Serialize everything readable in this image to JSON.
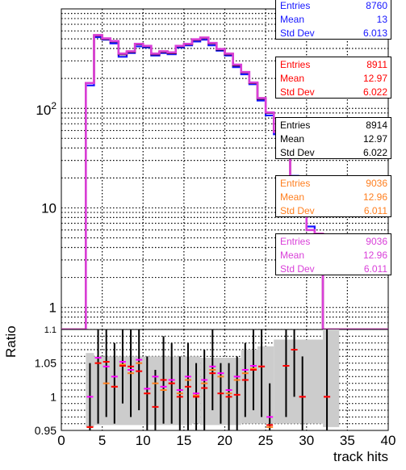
{
  "chart_data": [
    {
      "type": "line",
      "panel": "upper",
      "xlim": [
        0,
        40
      ],
      "y_scale": "log",
      "ylim": [
        0.6,
        1000
      ],
      "y_tick_labels": [
        "1",
        "10",
        "10^2"
      ],
      "grid": true,
      "bin_edges": [
        0,
        1,
        2,
        3,
        4,
        5,
        6,
        7,
        8,
        9,
        10,
        11,
        12,
        13,
        14,
        15,
        16,
        17,
        18,
        19,
        20,
        21,
        22,
        23,
        24,
        25,
        26,
        27,
        28,
        29,
        30,
        31,
        32,
        33,
        34,
        35,
        36,
        37,
        38,
        39,
        40
      ],
      "series": [
        {
          "color": "#1515ff",
          "values": [
            0,
            0,
            0,
            170,
            520,
            490,
            450,
            330,
            360,
            420,
            410,
            340,
            360,
            350,
            410,
            430,
            470,
            490,
            430,
            380,
            340,
            260,
            220,
            175,
            120,
            85,
            55,
            32,
            21,
            12,
            6.5,
            3.2,
            0,
            0,
            0,
            0,
            0,
            0,
            0,
            0
          ],
          "stats": {
            "entries_label": "Entries",
            "entries": "8760",
            "mean_label": "Mean",
            "mean": "13",
            "std_label": "Std Dev",
            "std": "6.013"
          }
        },
        {
          "color": "#ff0000",
          "values": [
            0,
            0,
            0,
            180,
            540,
            500,
            470,
            350,
            370,
            440,
            420,
            350,
            370,
            360,
            420,
            440,
            490,
            510,
            450,
            390,
            350,
            270,
            230,
            180,
            125,
            90,
            58,
            34,
            17,
            11,
            6,
            5.5,
            0,
            0,
            0,
            0,
            0,
            0,
            0,
            0
          ],
          "stats": {
            "entries_label": "Entries",
            "entries": "8911",
            "mean_label": "Mean",
            "mean": "12.97",
            "std_label": "Std Dev",
            "std": "6.022"
          }
        },
        {
          "color": "#000000",
          "values": [
            0,
            0,
            0,
            180,
            540,
            500,
            470,
            350,
            370,
            440,
            420,
            350,
            370,
            360,
            420,
            440,
            490,
            510,
            450,
            390,
            350,
            270,
            230,
            180,
            125,
            90,
            58,
            34,
            17,
            11,
            6,
            5.5,
            0,
            0,
            0,
            0,
            0,
            0,
            0,
            0
          ],
          "stats": {
            "entries_label": "Entries",
            "entries": "8914",
            "mean_label": "Mean",
            "mean": "12.97",
            "std_label": "Std Dev",
            "std": "6.022"
          }
        },
        {
          "color": "#ff7f1f",
          "values": [
            0,
            0,
            0,
            180,
            545,
            505,
            475,
            355,
            375,
            445,
            425,
            355,
            375,
            365,
            425,
            445,
            495,
            515,
            455,
            395,
            355,
            275,
            232,
            182,
            127,
            91,
            58,
            34,
            17,
            11,
            6,
            5.5,
            0,
            0,
            0,
            0,
            0,
            0,
            0,
            0
          ],
          "stats": {
            "entries_label": "Entries",
            "entries": "9036",
            "mean_label": "Mean",
            "mean": "12.96",
            "std_label": "Std Dev",
            "std": "6.011"
          }
        },
        {
          "color": "#d93fd9",
          "values": [
            0,
            0,
            0,
            180,
            545,
            505,
            475,
            355,
            375,
            445,
            425,
            355,
            375,
            365,
            425,
            445,
            495,
            515,
            455,
            395,
            355,
            275,
            232,
            182,
            127,
            91,
            58,
            34,
            17,
            11,
            6,
            5.5,
            0,
            0,
            0,
            0,
            0,
            0,
            0,
            0
          ],
          "stats": {
            "entries_label": "Entries",
            "entries": "9036",
            "mean_label": "Mean",
            "mean": "12.96",
            "std_label": "Std Dev",
            "std": "6.011"
          }
        }
      ]
    },
    {
      "type": "scatter",
      "panel": "lower",
      "xlabel": "track hits",
      "ylabel": "Ratio",
      "xlim": [
        0,
        40
      ],
      "ylim": [
        0.95,
        1.1
      ],
      "x_tick_labels": [
        "0",
        "5",
        "10",
        "15",
        "20",
        "25",
        "30",
        "35",
        "40"
      ],
      "y_tick_labels": [
        "0.95",
        "1",
        "1.05"
      ],
      "y_top_label": "1.1",
      "grid": true,
      "band": [
        {
          "x": [
            3,
            4
          ],
          "lo": 0.955,
          "hi": 1.065
        },
        {
          "x": [
            4,
            16
          ],
          "lo": 0.958,
          "hi": 1.06
        },
        {
          "x": [
            16,
            17
          ],
          "lo": 0.96,
          "hi": 1.06
        },
        {
          "x": [
            17,
            22
          ],
          "lo": 0.958,
          "hi": 1.058
        },
        {
          "x": [
            22,
            24
          ],
          "lo": 0.96,
          "hi": 1.07
        },
        {
          "x": [
            24,
            26
          ],
          "lo": 0.96,
          "hi": 1.075
        },
        {
          "x": [
            26,
            32
          ],
          "lo": 0.96,
          "hi": 1.085
        },
        {
          "x": [
            32,
            34
          ],
          "lo": 0.955,
          "hi": 1.1
        }
      ],
      "series": [
        {
          "color": "#ff00ff",
          "points": [
            [
              3.5,
              1.0
            ],
            [
              4.5,
              1.058
            ],
            [
              5.5,
              1.045
            ],
            [
              6.5,
              1.03
            ],
            [
              7.5,
              1.052
            ],
            [
              8.5,
              1.04
            ],
            [
              9.5,
              1.055
            ],
            [
              10.5,
              1.012
            ],
            [
              11.5,
              1.03
            ],
            [
              12.5,
              1.015
            ],
            [
              13.5,
              1.025
            ],
            [
              14.5,
              1.01
            ],
            [
              15.5,
              1.03
            ],
            [
              16.5,
              1.005
            ],
            [
              17.5,
              1.025
            ],
            [
              18.5,
              1.045
            ],
            [
              19.5,
              1.035
            ],
            [
              20.5,
              1.01
            ],
            [
              21.5,
              1.03
            ],
            [
              22.5,
              1.04
            ],
            [
              23.5,
              1.046
            ],
            [
              24.5,
              1.045
            ],
            [
              25.5,
              0.97
            ],
            [
              27.5,
              1.046
            ],
            [
              28.5,
              1.07
            ],
            [
              29.5,
              1.0
            ],
            [
              32.5,
              1.0
            ]
          ]
        },
        {
          "color": "#ff7f1f",
          "points": [
            [
              3.5,
              0.955
            ],
            [
              4.5,
              1.05
            ],
            [
              5.5,
              1.02
            ],
            [
              6.5,
              1.015
            ],
            [
              7.5,
              1.048
            ],
            [
              8.5,
              1.035
            ],
            [
              9.5,
              1.05
            ],
            [
              10.5,
              1.005
            ],
            [
              11.5,
              1.02
            ],
            [
              12.5,
              1.01
            ],
            [
              13.5,
              1.02
            ],
            [
              14.5,
              1.005
            ],
            [
              15.5,
              1.025
            ],
            [
              16.5,
              1.002
            ],
            [
              17.5,
              1.02
            ],
            [
              18.5,
              1.04
            ],
            [
              19.5,
              1.03
            ],
            [
              20.5,
              1.005
            ],
            [
              21.5,
              1.025
            ],
            [
              22.5,
              1.035
            ],
            [
              23.5,
              1.042
            ],
            [
              24.5,
              1.045
            ],
            [
              25.5,
              0.955
            ],
            [
              27.5,
              1.046
            ],
            [
              28.5,
              1.07
            ],
            [
              29.5,
              1.0
            ],
            [
              32.5,
              1.0
            ]
          ]
        },
        {
          "color": "#ff0000",
          "points": [
            [
              3.5,
              0.955
            ],
            [
              4.5,
              1.05
            ],
            [
              5.5,
              1.052
            ],
            [
              6.5,
              1.015
            ],
            [
              7.5,
              1.046
            ],
            [
              8.5,
              1.045
            ],
            [
              9.5,
              1.038
            ],
            [
              10.5,
              1.005
            ],
            [
              11.5,
              0.985
            ],
            [
              12.5,
              1.025
            ],
            [
              13.5,
              1.02
            ],
            [
              14.5,
              1.0
            ],
            [
              15.5,
              1.015
            ],
            [
              16.5,
              1.0
            ],
            [
              17.5,
              1.013
            ],
            [
              18.5,
              1.035
            ],
            [
              19.5,
              1.005
            ],
            [
              20.5,
              1.0
            ],
            [
              21.5,
              1.003
            ],
            [
              22.5,
              1.025
            ],
            [
              23.5,
              1.04
            ],
            [
              24.5,
              1.045
            ],
            [
              25.5,
              0.958
            ],
            [
              27.5,
              1.046
            ],
            [
              28.5,
              1.07
            ],
            [
              29.5,
              1.0
            ],
            [
              32.5,
              1.0
            ]
          ]
        }
      ],
      "error_bars": [
        [
          3.5,
          0.95,
          1.05
        ],
        [
          4.5,
          0.96,
          1.1
        ],
        [
          5.5,
          0.97,
          1.1
        ],
        [
          6.5,
          0.96,
          1.08
        ],
        [
          7.5,
          0.99,
          1.1
        ],
        [
          8.5,
          0.97,
          1.1
        ],
        [
          9.5,
          0.98,
          1.1
        ],
        [
          10.5,
          0.95,
          1.06
        ],
        [
          11.5,
          0.94,
          1.04
        ],
        [
          12.5,
          0.96,
          1.09
        ],
        [
          13.5,
          0.96,
          1.08
        ],
        [
          14.5,
          0.94,
          1.06
        ],
        [
          15.5,
          0.95,
          1.08
        ],
        [
          16.5,
          0.95,
          1.05
        ],
        [
          17.5,
          0.95,
          1.07
        ],
        [
          18.5,
          0.98,
          1.1
        ],
        [
          19.5,
          0.96,
          1.05
        ],
        [
          20.5,
          0.95,
          1.05
        ],
        [
          21.5,
          0.95,
          1.06
        ],
        [
          22.5,
          0.97,
          1.08
        ],
        [
          23.5,
          0.98,
          1.1
        ],
        [
          24.5,
          0.97,
          1.1
        ],
        [
          25.5,
          0.9,
          1.02
        ],
        [
          27.5,
          0.97,
          1.1
        ],
        [
          28.5,
          1.0,
          1.1
        ],
        [
          29.5,
          0.94,
          1.06
        ],
        [
          32.5,
          0.9,
          1.1
        ]
      ]
    }
  ]
}
